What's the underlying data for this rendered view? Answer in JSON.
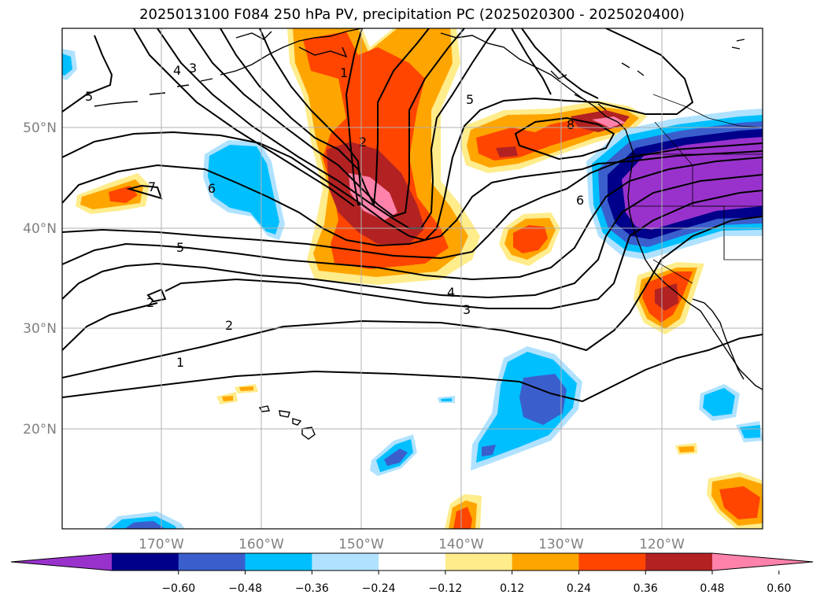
{
  "title": "2025013100 F084 250 hPa PV, precipitation PC (2025020300 - 2025020400)",
  "lat_labels": [
    "50°N",
    "40°N",
    "30°N",
    "20°N"
  ],
  "lon_labels": [
    "170°W",
    "160°W",
    "150°W",
    "140°W",
    "130°W",
    "120°W"
  ],
  "pv_contour_labels": [
    "5",
    "4",
    "3",
    "7",
    "6",
    "5",
    "2",
    "1",
    "2",
    "5",
    "8",
    "6",
    "4",
    "3",
    "2",
    "1",
    "2"
  ],
  "colorbar": {
    "ticks": [
      "−0.60",
      "−0.48",
      "−0.36",
      "−0.24",
      "−0.12",
      "0.12",
      "0.24",
      "0.36",
      "0.48",
      "0.60"
    ],
    "colors": [
      "#9932CC",
      "#00008B",
      "#3A5FCD",
      "#00BFFF",
      "#B0E2FF",
      "#FFFFFF",
      "#FFEC8B",
      "#FFA500",
      "#FF4500",
      "#B22222",
      "#FF82AB"
    ]
  }
}
